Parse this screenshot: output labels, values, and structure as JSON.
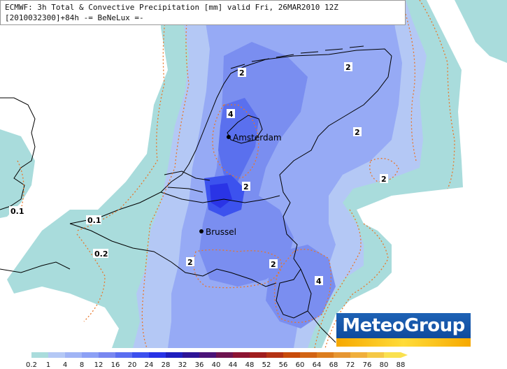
{
  "header": {
    "title_line1": "ECMWF: 3h Total & Convective Precipitation [mm] valid Fri, 26MAR2010 12Z",
    "title_line2": "[2010032300]+84h -= BeNeLux =-"
  },
  "cities": [
    {
      "name": "Amsterdam"
    },
    {
      "name": "Brussel"
    }
  ],
  "contour_labels": [
    "2",
    "2",
    "4",
    "2",
    "2",
    "2",
    "0.1",
    "0.1",
    "0.2",
    "2",
    "2",
    "4"
  ],
  "logo": {
    "text": "MeteoGroup"
  },
  "colorbar": {
    "labels": [
      "0.2",
      "1",
      "4",
      "8",
      "12",
      "16",
      "20",
      "24",
      "28",
      "32",
      "36",
      "40",
      "44",
      "48",
      "52",
      "56",
      "60",
      "64",
      "68",
      "72",
      "76",
      "80",
      "88"
    ],
    "colors": [
      "#aadcdc",
      "#b4c8f5",
      "#a0b4f5",
      "#8ca0f5",
      "#7887f0",
      "#5a6ef0",
      "#3c50ee",
      "#2832e6",
      "#1e1ebe",
      "#2d1496",
      "#4b1478",
      "#6e1450",
      "#8c1432",
      "#a01e1e",
      "#b43214",
      "#c84b0a",
      "#d26414",
      "#dc7d1e",
      "#e69632",
      "#f0af3c",
      "#f5c846",
      "#fae150"
    ],
    "colors_meaning": "precipitation legend fill colors"
  }
}
